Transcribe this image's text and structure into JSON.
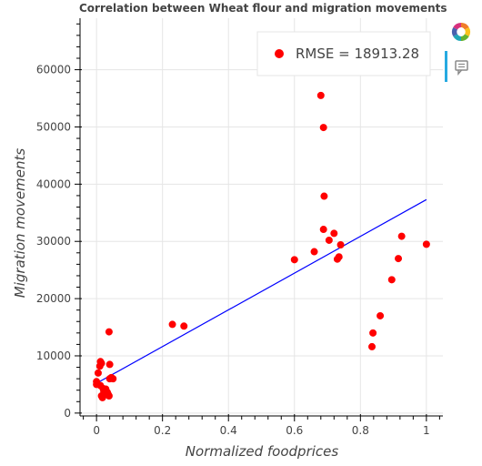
{
  "chart_data": {
    "type": "scatter",
    "title": "Correlation between Wheat flour and migration movements",
    "xlabel": "Normalized foodprices",
    "ylabel": "Migration movements",
    "xlim": [
      -0.05,
      1.05
    ],
    "ylim": [
      -500,
      69000
    ],
    "x_ticks": [
      0,
      0.2,
      0.4,
      0.6,
      0.8,
      1
    ],
    "x_tick_labels": [
      "0",
      "0.2",
      "0.4",
      "0.6",
      "0.8",
      "1"
    ],
    "y_ticks": [
      0,
      10000,
      20000,
      30000,
      40000,
      50000,
      60000
    ],
    "y_tick_labels": [
      "0",
      "10000",
      "20000",
      "30000",
      "40000",
      "50000",
      "60000"
    ],
    "grid": true,
    "legend": {
      "position": "top-right",
      "label": "RMSE = 18913.28"
    },
    "series": [
      {
        "kind": "points",
        "color": "#ff0000",
        "points": [
          [
            0,
            5500
          ],
          [
            0,
            5000
          ],
          [
            0.005,
            7000
          ],
          [
            0.01,
            8200
          ],
          [
            0.012,
            9000
          ],
          [
            0.015,
            8700
          ],
          [
            0.012,
            4800
          ],
          [
            0.015,
            3000
          ],
          [
            0.018,
            2700
          ],
          [
            0.02,
            4300
          ],
          [
            0.022,
            3800
          ],
          [
            0.025,
            3200
          ],
          [
            0.028,
            4200
          ],
          [
            0.03,
            3800
          ],
          [
            0.033,
            3600
          ],
          [
            0.035,
            3300
          ],
          [
            0.038,
            3000
          ],
          [
            0.04,
            6000
          ],
          [
            0.045,
            6200
          ],
          [
            0.05,
            6000
          ],
          [
            0.04,
            8500
          ],
          [
            0.038,
            14200
          ],
          [
            0.23,
            15500
          ],
          [
            0.265,
            15200
          ],
          [
            0.6,
            26800
          ],
          [
            0.66,
            28200
          ],
          [
            0.68,
            55500
          ],
          [
            0.688,
            49900
          ],
          [
            0.69,
            37900
          ],
          [
            0.688,
            32100
          ],
          [
            0.705,
            30200
          ],
          [
            0.72,
            31400
          ],
          [
            0.73,
            26900
          ],
          [
            0.735,
            27300
          ],
          [
            0.74,
            29400
          ],
          [
            0.835,
            11600
          ],
          [
            0.838,
            14000
          ],
          [
            0.86,
            17000
          ],
          [
            0.895,
            23300
          ],
          [
            0.915,
            27000
          ],
          [
            0.925,
            30900
          ],
          [
            1.0,
            29500
          ]
        ]
      },
      {
        "kind": "regression-line",
        "color": "#0000ff",
        "points": [
          [
            0,
            5200
          ],
          [
            1.0,
            37300
          ]
        ]
      }
    ]
  },
  "toolbar": {
    "logo_icon": "bokeh-logo-icon",
    "hover_icon": "hover-tool-icon"
  }
}
